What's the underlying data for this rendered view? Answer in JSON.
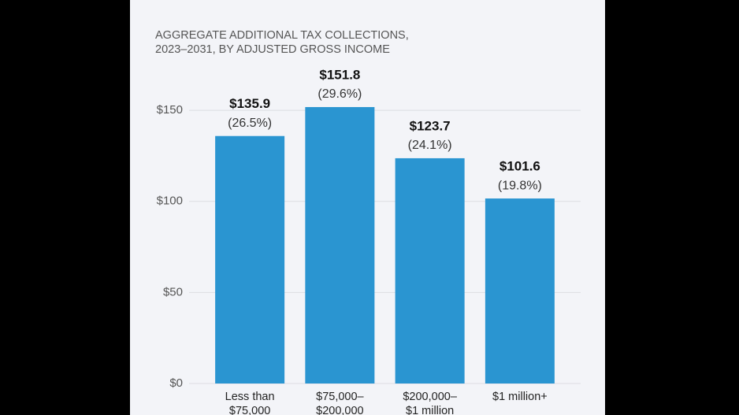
{
  "chart_data": {
    "type": "bar",
    "subtitle": [
      "AGGREGATE ADDITIONAL TAX COLLECTIONS,",
      "2023–2031, BY ADJUSTED GROSS INCOME"
    ],
    "categories": [
      [
        "Less than",
        "$75,000"
      ],
      [
        "$75,000–",
        "$200,000"
      ],
      [
        "$200,000–",
        "$1 million"
      ],
      [
        "$1 million+"
      ]
    ],
    "values": [
      135.9,
      151.8,
      123.7,
      101.6
    ],
    "value_labels": [
      "$135.9",
      "$151.8",
      "$123.7",
      "$101.6"
    ],
    "share_labels": [
      "(26.5%)",
      "(29.6%)",
      "(24.1%)",
      "(19.8%)"
    ],
    "color": "#2a95d1",
    "ylim": [
      0,
      160
    ],
    "yticks": [
      {
        "value": 0,
        "label": "$0"
      },
      {
        "value": 50,
        "label": "$50"
      },
      {
        "value": 100,
        "label": "$100"
      },
      {
        "value": 150,
        "label": "$150"
      }
    ],
    "grid": true
  }
}
